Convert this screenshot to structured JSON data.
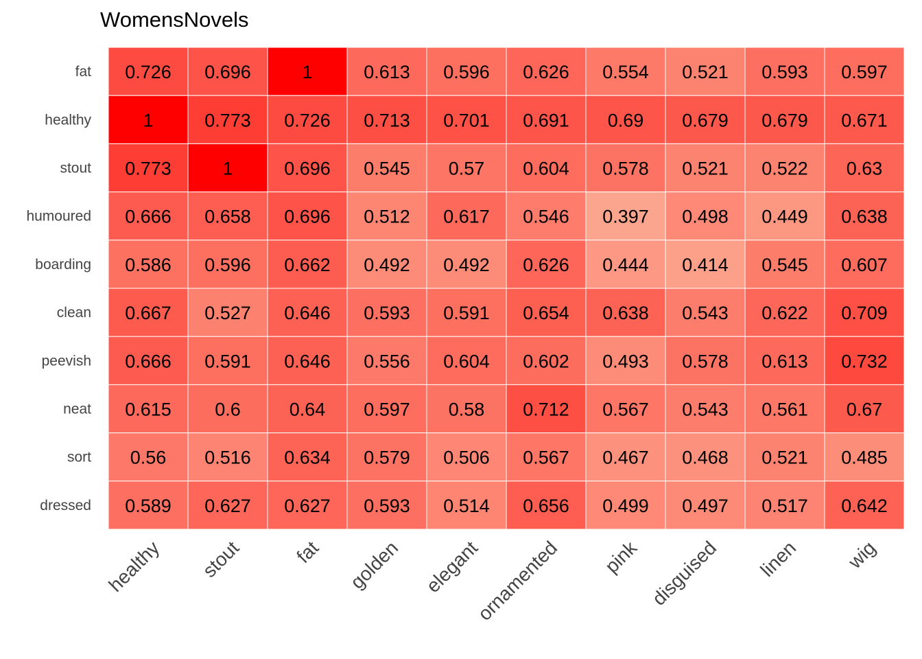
{
  "chart_data": {
    "type": "heatmap",
    "title": "WomensNovels",
    "x_categories": [
      "healthy",
      "stout",
      "fat",
      "golden",
      "elegant",
      "ornamented",
      "pink",
      "disguised",
      "linen",
      "wig"
    ],
    "y_categories": [
      "fat",
      "healthy",
      "stout",
      "humoured",
      "boarding",
      "clean",
      "peevish",
      "neat",
      "sort",
      "dressed"
    ],
    "values": [
      [
        0.726,
        0.696,
        1,
        0.613,
        0.596,
        0.626,
        0.554,
        0.521,
        0.593,
        0.597
      ],
      [
        1,
        0.773,
        0.726,
        0.713,
        0.701,
        0.691,
        0.69,
        0.679,
        0.679,
        0.671
      ],
      [
        0.773,
        1,
        0.696,
        0.545,
        0.57,
        0.604,
        0.578,
        0.521,
        0.522,
        0.63
      ],
      [
        0.666,
        0.658,
        0.696,
        0.512,
        0.617,
        0.546,
        0.397,
        0.498,
        0.449,
        0.638
      ],
      [
        0.586,
        0.596,
        0.662,
        0.492,
        0.492,
        0.626,
        0.444,
        0.414,
        0.545,
        0.607
      ],
      [
        0.667,
        0.527,
        0.646,
        0.593,
        0.591,
        0.654,
        0.638,
        0.543,
        0.622,
        0.709
      ],
      [
        0.666,
        0.591,
        0.646,
        0.556,
        0.604,
        0.602,
        0.493,
        0.578,
        0.613,
        0.732
      ],
      [
        0.615,
        0.6,
        0.64,
        0.597,
        0.58,
        0.712,
        0.567,
        0.543,
        0.561,
        0.67
      ],
      [
        0.56,
        0.516,
        0.634,
        0.579,
        0.506,
        0.567,
        0.467,
        0.468,
        0.521,
        0.485
      ],
      [
        0.589,
        0.627,
        0.627,
        0.593,
        0.514,
        0.656,
        0.499,
        0.497,
        0.517,
        0.642
      ]
    ],
    "color_low": "#fca58e",
    "color_high": "#ff0000",
    "value_range": [
      0.397,
      1
    ],
    "legend": "none",
    "grid": false
  }
}
